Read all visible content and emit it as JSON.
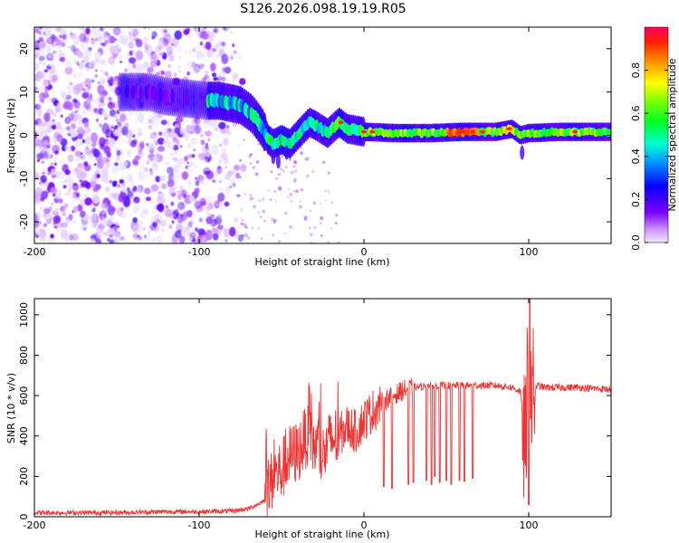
{
  "title": "S126.2026.098.19.19.R05",
  "colors": {
    "signal": "#ee3333",
    "background": "#ffffff",
    "axis": "#000000"
  },
  "chart_data": [
    {
      "type": "heatmap",
      "name": "spectrogram",
      "title": "S126.2026.098.19.19.R05",
      "xlabel": "Height of straight line (km)",
      "ylabel": "Frequency (Hz)",
      "xlim": [
        -200,
        150
      ],
      "ylim": [
        -25,
        25
      ],
      "xticks": [
        -200,
        -100,
        0,
        100
      ],
      "yticks": [
        20,
        10,
        0,
        -10,
        -20
      ],
      "colorbar": {
        "label": "Normalized spectral amplitude",
        "range": [
          0,
          1
        ],
        "ticks": [
          0.0,
          0.2,
          0.4,
          0.6,
          0.8
        ],
        "colormap": "rainbow (magenta-blue-cyan-green-yellow-red)"
      },
      "features": {
        "noise_region_km": [
          -200,
          -75
        ],
        "signal_track_freq_hz": [
          {
            "x": -145,
            "f": 10
          },
          {
            "x": -130,
            "f": 10
          },
          {
            "x": -120,
            "f": 9
          },
          {
            "x": -95,
            "f": 8
          },
          {
            "x": -88,
            "f": 8
          },
          {
            "x": -75,
            "f": 7
          },
          {
            "x": -68,
            "f": 5
          },
          {
            "x": -62,
            "f": 2
          },
          {
            "x": -58,
            "f": -1
          },
          {
            "x": -55,
            "f": -2
          },
          {
            "x": -50,
            "f": -1
          },
          {
            "x": -45,
            "f": -2
          },
          {
            "x": -38,
            "f": 1
          },
          {
            "x": -33,
            "f": 3
          },
          {
            "x": -28,
            "f": 2
          },
          {
            "x": -22,
            "f": 0.5
          },
          {
            "x": -15,
            "f": 3
          },
          {
            "x": -10,
            "f": 1.5
          },
          {
            "x": 0,
            "f": 0.8
          },
          {
            "x": 20,
            "f": 0.5
          },
          {
            "x": 40,
            "f": 0.5
          },
          {
            "x": 60,
            "f": 0.8
          },
          {
            "x": 80,
            "f": 0.8
          },
          {
            "x": 90,
            "f": 1.5
          },
          {
            "x": 95,
            "f": 0
          },
          {
            "x": 100,
            "f": 0.5
          },
          {
            "x": 120,
            "f": 0.8
          },
          {
            "x": 150,
            "f": 0.8
          }
        ]
      }
    },
    {
      "type": "line",
      "name": "snr",
      "xlabel": "Height of straight line (km)",
      "ylabel": "SNR (10 * v/v)",
      "xlim": [
        -200,
        150
      ],
      "ylim": [
        0,
        1080
      ],
      "xticks": [
        -200,
        -100,
        0,
        100
      ],
      "yticks": [
        0,
        200,
        400,
        600,
        800,
        1000
      ],
      "series": [
        {
          "name": "SNR",
          "x": [
            -200,
            -160,
            -140,
            -120,
            -100,
            -80,
            -70,
            -60,
            -55,
            -50,
            -45,
            -40,
            -35,
            -30,
            -25,
            -20,
            -15,
            -10,
            -5,
            0,
            5,
            10,
            15,
            20,
            25,
            30,
            40,
            50,
            60,
            70,
            80,
            90,
            95,
            98,
            100,
            102,
            105,
            110,
            120,
            130,
            140,
            150
          ],
          "y": [
            20,
            20,
            22,
            25,
            25,
            28,
            40,
            80,
            200,
            230,
            300,
            320,
            400,
            350,
            300,
            380,
            400,
            450,
            420,
            480,
            520,
            560,
            590,
            610,
            630,
            640,
            650,
            650,
            650,
            650,
            650,
            640,
            620,
            300,
            900,
            580,
            650,
            640,
            640,
            640,
            635,
            630
          ]
        }
      ],
      "dropouts": [
        {
          "x": 12,
          "y": 150
        },
        {
          "x": 17,
          "y": 140
        },
        {
          "x": 27,
          "y": 160
        },
        {
          "x": 30,
          "y": 170
        },
        {
          "x": 38,
          "y": 180
        },
        {
          "x": 41,
          "y": 160
        },
        {
          "x": 43,
          "y": 200
        },
        {
          "x": 46,
          "y": 170
        },
        {
          "x": 50,
          "y": 180
        },
        {
          "x": 53,
          "y": 160
        },
        {
          "x": 58,
          "y": 180
        },
        {
          "x": 61,
          "y": 175
        },
        {
          "x": 66,
          "y": 190
        }
      ]
    }
  ]
}
